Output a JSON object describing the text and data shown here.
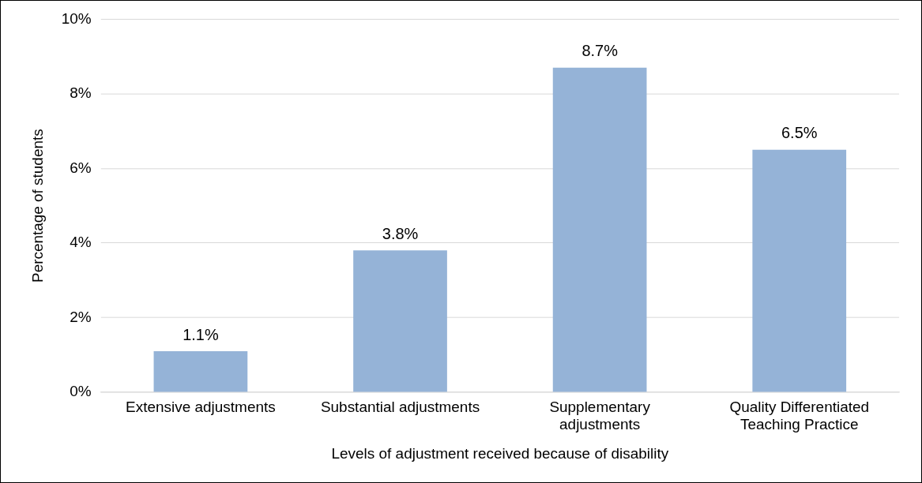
{
  "chart_data": {
    "type": "bar",
    "xlabel": "Levels of adjustment received because of disability",
    "ylabel": "Percentage of students",
    "categories": [
      "Extensive adjustments",
      "Substantial adjustments",
      "Supplementary adjustments",
      "Quality Differentiated Teaching Practice"
    ],
    "values": [
      1.1,
      3.8,
      8.7,
      6.5
    ],
    "color": "#95b3d7",
    "value_labels": [
      "1.1%",
      "3.8%",
      "8.7%",
      "6.5%"
    ],
    "ylim": [
      0,
      10
    ],
    "yticks": [
      {
        "value": 0,
        "label": "0%"
      },
      {
        "value": 2,
        "label": "2%"
      },
      {
        "value": 4,
        "label": "4%"
      },
      {
        "value": 6,
        "label": "6%"
      },
      {
        "value": 8,
        "label": "8%"
      },
      {
        "value": 10,
        "label": "10%"
      }
    ],
    "grid": "y",
    "legend": false
  }
}
